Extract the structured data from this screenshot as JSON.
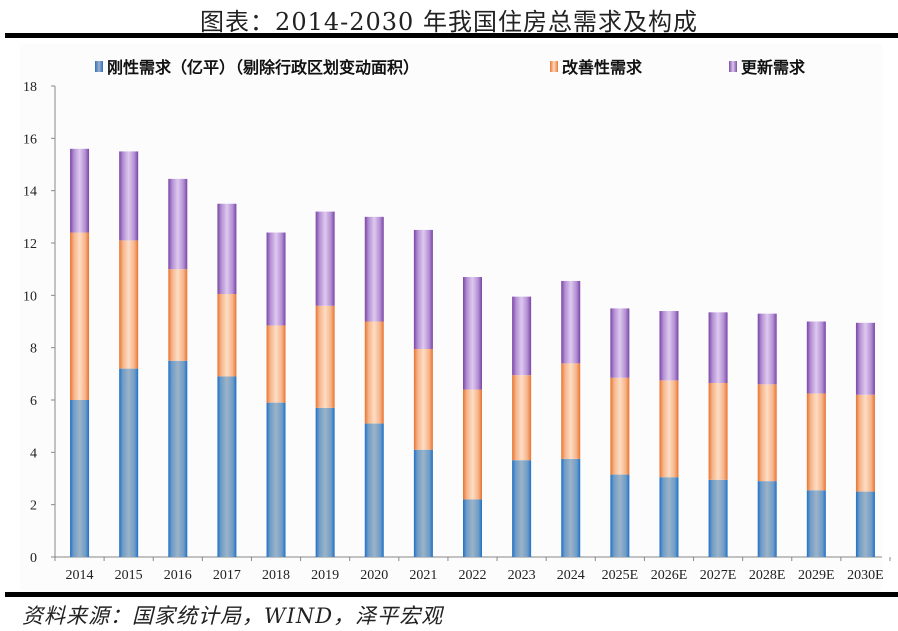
{
  "title": "图表：2014-2030 年我国住房总需求及构成",
  "source": "资料来源：国家统计局，WIND，泽平宏观",
  "colors": {
    "rigid": "#4472c4",
    "rigid_light": "#9bb3c9",
    "rigid_dark": "#2f6fbf",
    "improve": "#e8793a",
    "improve_light": "#fdd9bd",
    "renew": "#7e4fa8",
    "renew_light": "#dcc5ec"
  },
  "chart_data": {
    "type": "bar",
    "stacked": true,
    "title": "图表：2014-2030 年我国住房总需求及构成",
    "xlabel": "",
    "ylabel": "",
    "ylim": [
      0,
      18
    ],
    "yticks": [
      0,
      2,
      4,
      6,
      8,
      10,
      12,
      14,
      16,
      18
    ],
    "grid": false,
    "legend_position": "top",
    "categories": [
      "2014",
      "2015",
      "2016",
      "2017",
      "2018",
      "2019",
      "2020",
      "2021",
      "2022",
      "2023",
      "2024",
      "2025E",
      "2026E",
      "2027E",
      "2028E",
      "2029E",
      "2030E"
    ],
    "series": [
      {
        "name": "刚性需求（亿平）（剔除行政区划变动面积）",
        "key": "rigid",
        "values": [
          6.0,
          7.2,
          7.5,
          6.9,
          5.9,
          5.7,
          5.1,
          4.1,
          2.2,
          3.7,
          3.75,
          3.15,
          3.05,
          2.95,
          2.9,
          2.55,
          2.5
        ]
      },
      {
        "name": "改善性需求",
        "key": "improve",
        "values": [
          6.4,
          4.9,
          3.5,
          3.15,
          2.95,
          3.9,
          3.9,
          3.85,
          4.2,
          3.25,
          3.65,
          3.7,
          3.7,
          3.7,
          3.7,
          3.7,
          3.7
        ]
      },
      {
        "name": "更新需求",
        "key": "renew",
        "values": [
          3.2,
          3.4,
          3.45,
          3.45,
          3.55,
          3.6,
          4.0,
          4.55,
          4.3,
          3.0,
          3.15,
          2.65,
          2.65,
          2.7,
          2.7,
          2.75,
          2.75
        ]
      }
    ]
  },
  "legend": [
    {
      "label": "刚性需求（亿平）（剔除行政区划变动面积）",
      "key": "rigid"
    },
    {
      "label": "改善性需求",
      "key": "improve"
    },
    {
      "label": "更新需求",
      "key": "renew"
    }
  ]
}
